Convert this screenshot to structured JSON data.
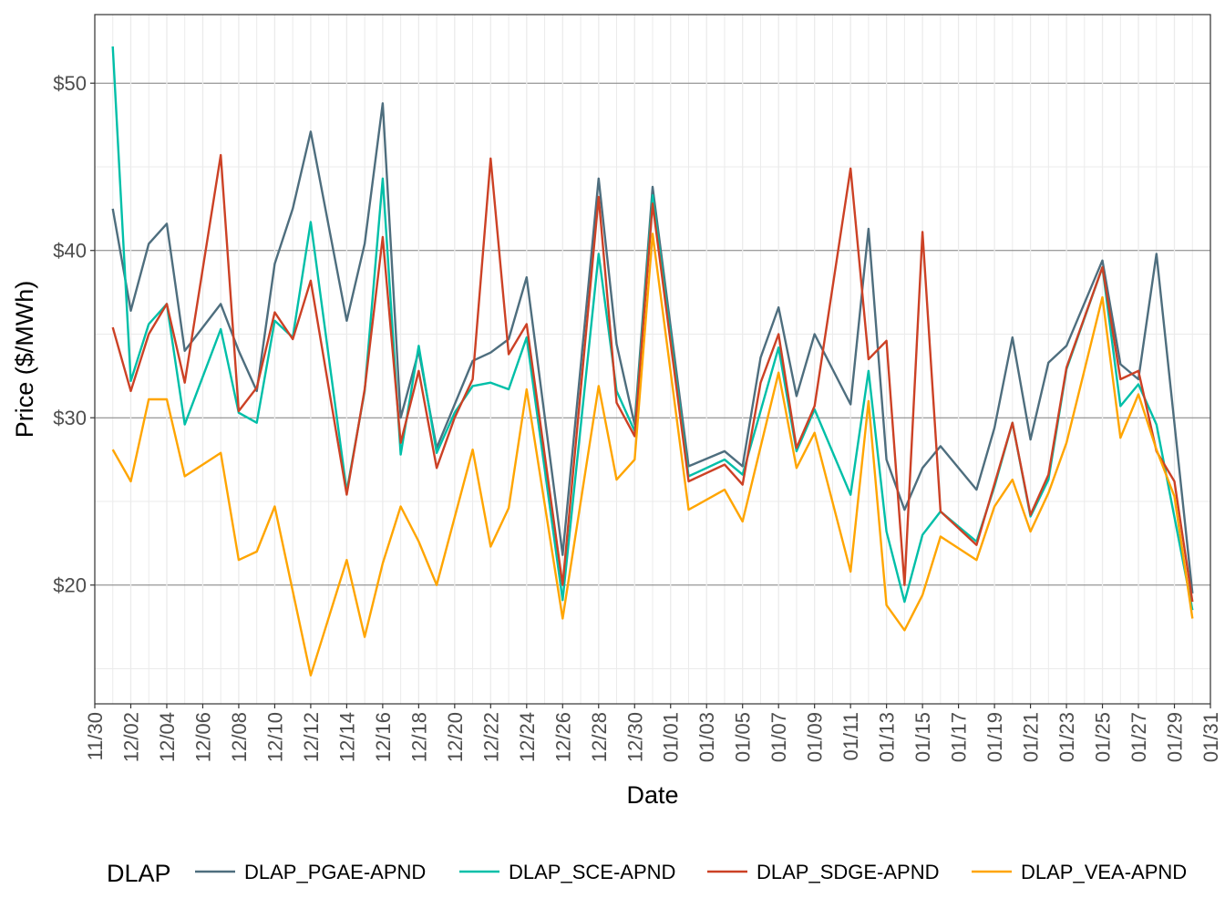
{
  "chart_data": {
    "type": "line",
    "xlabel": "Date",
    "ylabel": "Price ($/MWh)",
    "ylim": [
      12.9,
      54.1
    ],
    "xlim": [
      "2023-11-30",
      "2024-01-31"
    ],
    "grid": true,
    "legend_position": "bottom",
    "legend_title": "DLAP",
    "x_ticks": [
      "11/30",
      "12/02",
      "12/04",
      "12/06",
      "12/08",
      "12/10",
      "12/12",
      "12/14",
      "12/16",
      "12/18",
      "12/20",
      "12/22",
      "12/24",
      "12/26",
      "12/28",
      "12/30",
      "01/01",
      "01/03",
      "01/05",
      "01/07",
      "01/09",
      "01/11",
      "01/13",
      "01/15",
      "01/17",
      "01/19",
      "01/21",
      "01/23",
      "01/25",
      "01/27",
      "01/29",
      "01/31"
    ],
    "y_ticks": [
      {
        "value": 20,
        "label": "$20"
      },
      {
        "value": 30,
        "label": "$30"
      },
      {
        "value": 40,
        "label": "$40"
      },
      {
        "value": 50,
        "label": "$50"
      }
    ],
    "series": [
      {
        "name": "DLAP_PGAE-APND",
        "color": "#4E6E7E",
        "points": [
          [
            "2023-12-01",
            42.5
          ],
          [
            "2023-12-02",
            36.4
          ],
          [
            "2023-12-03",
            40.4
          ],
          [
            "2023-12-04",
            41.6
          ],
          [
            "2023-12-05",
            34.0
          ],
          [
            "2023-12-07",
            36.8
          ],
          [
            "2023-12-08",
            34.0
          ],
          [
            "2023-12-09",
            31.6
          ],
          [
            "2023-12-10",
            39.2
          ],
          [
            "2023-12-11",
            42.5
          ],
          [
            "2023-12-12",
            47.1
          ],
          [
            "2023-12-14",
            35.8
          ],
          [
            "2023-12-15",
            40.4
          ],
          [
            "2023-12-16",
            48.8
          ],
          [
            "2023-12-17",
            30.0
          ],
          [
            "2023-12-18",
            34.0
          ],
          [
            "2023-12-19",
            28.2
          ],
          [
            "2023-12-21",
            33.4
          ],
          [
            "2023-12-22",
            33.9
          ],
          [
            "2023-12-23",
            34.7
          ],
          [
            "2023-12-24",
            38.4
          ],
          [
            "2023-12-26",
            21.8
          ],
          [
            "2023-12-28",
            44.3
          ],
          [
            "2023-12-29",
            34.4
          ],
          [
            "2023-12-30",
            29.6
          ],
          [
            "2023-12-31",
            43.8
          ],
          [
            "2024-01-02",
            27.1
          ],
          [
            "2024-01-04",
            28.0
          ],
          [
            "2024-01-05",
            27.1
          ],
          [
            "2024-01-06",
            33.6
          ],
          [
            "2024-01-07",
            36.6
          ],
          [
            "2024-01-08",
            31.3
          ],
          [
            "2024-01-09",
            35.0
          ],
          [
            "2024-01-11",
            30.8
          ],
          [
            "2024-01-12",
            41.3
          ],
          [
            "2024-01-13",
            27.5
          ],
          [
            "2024-01-14",
            24.5
          ],
          [
            "2024-01-15",
            27.0
          ],
          [
            "2024-01-16",
            28.3
          ],
          [
            "2024-01-18",
            25.7
          ],
          [
            "2024-01-19",
            29.4
          ],
          [
            "2024-01-20",
            34.8
          ],
          [
            "2024-01-21",
            28.7
          ],
          [
            "2024-01-22",
            33.3
          ],
          [
            "2024-01-23",
            34.3
          ],
          [
            "2024-01-25",
            39.4
          ],
          [
            "2024-01-26",
            33.2
          ],
          [
            "2024-01-27",
            32.3
          ],
          [
            "2024-01-28",
            39.8
          ],
          [
            "2024-01-30",
            19.5
          ]
        ]
      },
      {
        "name": "DLAP_SCE-APND",
        "color": "#00BFA8",
        "points": [
          [
            "2023-12-01",
            52.2
          ],
          [
            "2023-12-02",
            32.2
          ],
          [
            "2023-12-03",
            35.6
          ],
          [
            "2023-12-04",
            36.8
          ],
          [
            "2023-12-05",
            29.6
          ],
          [
            "2023-12-07",
            35.3
          ],
          [
            "2023-12-08",
            30.3
          ],
          [
            "2023-12-09",
            29.7
          ],
          [
            "2023-12-10",
            35.8
          ],
          [
            "2023-12-11",
            34.8
          ],
          [
            "2023-12-12",
            41.7
          ],
          [
            "2023-12-14",
            25.6
          ],
          [
            "2023-12-15",
            31.6
          ],
          [
            "2023-12-16",
            44.3
          ],
          [
            "2023-12-17",
            27.8
          ],
          [
            "2023-12-18",
            34.3
          ],
          [
            "2023-12-19",
            27.9
          ],
          [
            "2023-12-20",
            30.3
          ],
          [
            "2023-12-21",
            31.9
          ],
          [
            "2023-12-22",
            32.1
          ],
          [
            "2023-12-23",
            31.7
          ],
          [
            "2023-12-24",
            34.8
          ],
          [
            "2023-12-26",
            19.1
          ],
          [
            "2023-12-28",
            39.8
          ],
          [
            "2023-12-29",
            31.6
          ],
          [
            "2023-12-30",
            29.2
          ],
          [
            "2023-12-31",
            43.3
          ],
          [
            "2024-01-02",
            26.5
          ],
          [
            "2024-01-04",
            27.5
          ],
          [
            "2024-01-05",
            26.6
          ],
          [
            "2024-01-07",
            34.2
          ],
          [
            "2024-01-08",
            28.0
          ],
          [
            "2024-01-09",
            30.5
          ],
          [
            "2024-01-11",
            25.4
          ],
          [
            "2024-01-12",
            32.8
          ],
          [
            "2024-01-13",
            23.2
          ],
          [
            "2024-01-14",
            19.0
          ],
          [
            "2024-01-15",
            23.0
          ],
          [
            "2024-01-16",
            24.4
          ],
          [
            "2024-01-18",
            22.6
          ],
          [
            "2024-01-19",
            25.9
          ],
          [
            "2024-01-20",
            29.7
          ],
          [
            "2024-01-21",
            24.1
          ],
          [
            "2024-01-22",
            26.3
          ],
          [
            "2024-01-23",
            32.9
          ],
          [
            "2024-01-25",
            39.0
          ],
          [
            "2024-01-26",
            30.7
          ],
          [
            "2024-01-27",
            32.0
          ],
          [
            "2024-01-28",
            29.6
          ],
          [
            "2024-01-30",
            18.5
          ]
        ]
      },
      {
        "name": "DLAP_SDGE-APND",
        "color": "#CC4125",
        "points": [
          [
            "2023-12-01",
            35.4
          ],
          [
            "2023-12-02",
            31.6
          ],
          [
            "2023-12-03",
            35.0
          ],
          [
            "2023-12-04",
            36.8
          ],
          [
            "2023-12-05",
            32.1
          ],
          [
            "2023-12-07",
            45.7
          ],
          [
            "2023-12-08",
            30.4
          ],
          [
            "2023-12-09",
            31.8
          ],
          [
            "2023-12-10",
            36.3
          ],
          [
            "2023-12-11",
            34.7
          ],
          [
            "2023-12-12",
            38.2
          ],
          [
            "2023-12-14",
            25.4
          ],
          [
            "2023-12-15",
            31.7
          ],
          [
            "2023-12-16",
            40.8
          ],
          [
            "2023-12-17",
            28.5
          ],
          [
            "2023-12-18",
            32.8
          ],
          [
            "2023-12-19",
            27.0
          ],
          [
            "2023-12-20",
            30.0
          ],
          [
            "2023-12-21",
            32.3
          ],
          [
            "2023-12-22",
            45.5
          ],
          [
            "2023-12-23",
            33.8
          ],
          [
            "2023-12-24",
            35.6
          ],
          [
            "2023-12-26",
            20.0
          ],
          [
            "2023-12-28",
            43.2
          ],
          [
            "2023-12-29",
            30.9
          ],
          [
            "2023-12-30",
            28.9
          ],
          [
            "2023-12-31",
            42.8
          ],
          [
            "2024-01-02",
            26.2
          ],
          [
            "2024-01-04",
            27.2
          ],
          [
            "2024-01-05",
            26.0
          ],
          [
            "2024-01-06",
            32.1
          ],
          [
            "2024-01-07",
            35.0
          ],
          [
            "2024-01-08",
            28.2
          ],
          [
            "2024-01-09",
            30.7
          ],
          [
            "2024-01-11",
            44.9
          ],
          [
            "2024-01-12",
            33.5
          ],
          [
            "2024-01-13",
            34.6
          ],
          [
            "2024-01-14",
            20.0
          ],
          [
            "2024-01-15",
            41.1
          ],
          [
            "2024-01-16",
            24.4
          ],
          [
            "2024-01-18",
            22.4
          ],
          [
            "2024-01-20",
            29.7
          ],
          [
            "2024-01-21",
            24.2
          ],
          [
            "2024-01-22",
            26.6
          ],
          [
            "2024-01-23",
            33.0
          ],
          [
            "2024-01-25",
            39.0
          ],
          [
            "2024-01-26",
            32.3
          ],
          [
            "2024-01-27",
            32.8
          ],
          [
            "2024-01-28",
            28.0
          ],
          [
            "2024-01-29",
            26.2
          ],
          [
            "2024-01-30",
            19.0
          ]
        ]
      },
      {
        "name": "DLAP_VEA-APND",
        "color": "#FFA500",
        "points": [
          [
            "2023-12-01",
            28.1
          ],
          [
            "2023-12-02",
            26.2
          ],
          [
            "2023-12-03",
            31.1
          ],
          [
            "2023-12-04",
            31.1
          ],
          [
            "2023-12-05",
            26.5
          ],
          [
            "2023-12-07",
            27.9
          ],
          [
            "2023-12-08",
            21.5
          ],
          [
            "2023-12-09",
            22.0
          ],
          [
            "2023-12-10",
            24.7
          ],
          [
            "2023-12-12",
            14.6
          ],
          [
            "2023-12-14",
            21.5
          ],
          [
            "2023-12-15",
            16.9
          ],
          [
            "2023-12-16",
            21.3
          ],
          [
            "2023-12-17",
            24.7
          ],
          [
            "2023-12-18",
            22.6
          ],
          [
            "2023-12-19",
            20.0
          ],
          [
            "2023-12-21",
            28.1
          ],
          [
            "2023-12-22",
            22.3
          ],
          [
            "2023-12-23",
            24.6
          ],
          [
            "2023-12-24",
            31.7
          ],
          [
            "2023-12-26",
            18.0
          ],
          [
            "2023-12-28",
            31.9
          ],
          [
            "2023-12-29",
            26.3
          ],
          [
            "2023-12-30",
            27.5
          ],
          [
            "2023-12-31",
            41.0
          ],
          [
            "2024-01-02",
            24.5
          ],
          [
            "2024-01-04",
            25.7
          ],
          [
            "2024-01-05",
            23.8
          ],
          [
            "2024-01-07",
            32.7
          ],
          [
            "2024-01-08",
            27.0
          ],
          [
            "2024-01-09",
            29.1
          ],
          [
            "2024-01-11",
            20.8
          ],
          [
            "2024-01-12",
            31.0
          ],
          [
            "2024-01-13",
            18.8
          ],
          [
            "2024-01-14",
            17.3
          ],
          [
            "2024-01-15",
            19.4
          ],
          [
            "2024-01-16",
            22.9
          ],
          [
            "2024-01-18",
            21.5
          ],
          [
            "2024-01-19",
            24.7
          ],
          [
            "2024-01-20",
            26.3
          ],
          [
            "2024-01-21",
            23.2
          ],
          [
            "2024-01-22",
            25.5
          ],
          [
            "2024-01-23",
            28.5
          ],
          [
            "2024-01-25",
            37.2
          ],
          [
            "2024-01-26",
            28.8
          ],
          [
            "2024-01-27",
            31.4
          ],
          [
            "2024-01-28",
            28.1
          ],
          [
            "2024-01-29",
            25.3
          ],
          [
            "2024-01-30",
            18.0
          ]
        ]
      }
    ]
  }
}
